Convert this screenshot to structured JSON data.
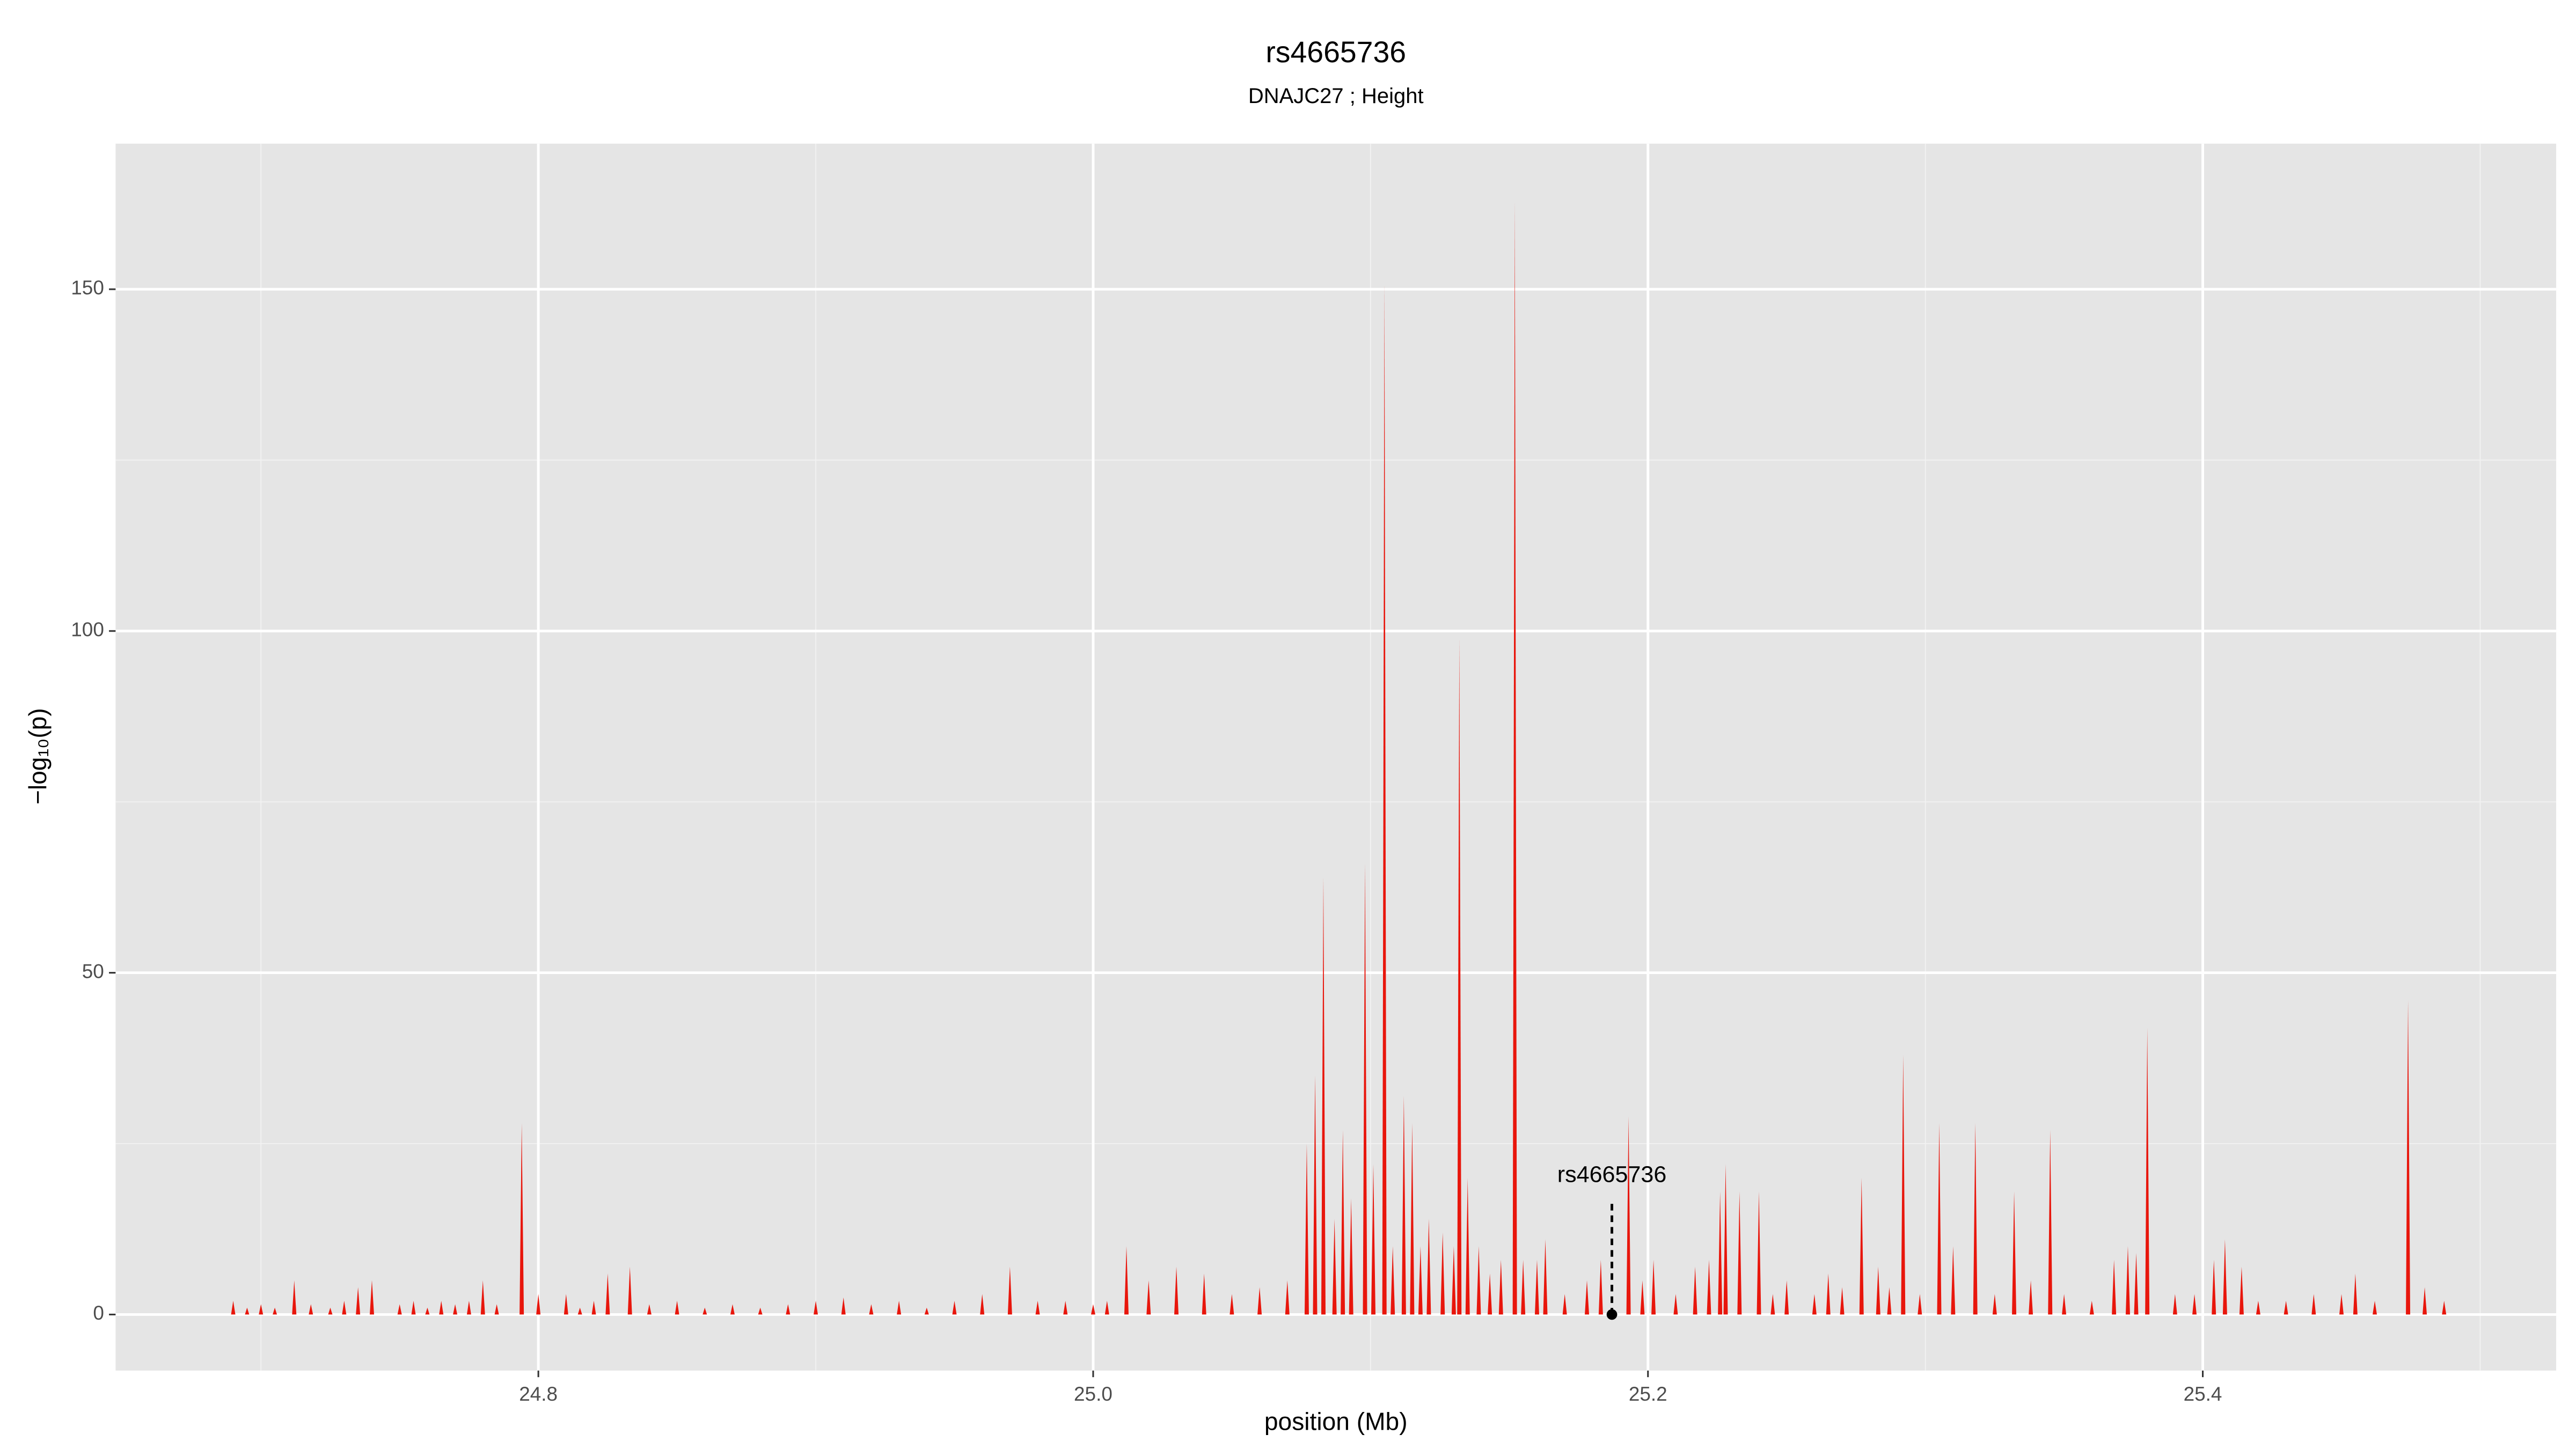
{
  "chart_data": {
    "type": "spike",
    "title": "rs4665736",
    "subtitle": "DNAJC27 ; Height",
    "x_label": "position (Mb)",
    "y_label": "−log₁₀(p)",
    "color": "#e8160c",
    "xlim": [
      24.6476,
      25.5274
    ],
    "ylim": [
      -8.2,
      171.3
    ],
    "xticks": [
      24.8,
      {
        "value": 25.0,
        "label": "25.0"
      },
      25.2,
      25.4
    ],
    "yticks": [
      0,
      50,
      100,
      150
    ],
    "grid": true,
    "minor_grid": true,
    "x": [
      24.69,
      24.695,
      24.7,
      24.705,
      24.712,
      24.718,
      24.725,
      24.73,
      24.735,
      24.74,
      24.75,
      24.755,
      24.76,
      24.765,
      24.77,
      24.775,
      24.78,
      24.785,
      24.794,
      24.8,
      24.81,
      24.815,
      24.82,
      24.825,
      24.833,
      24.84,
      24.85,
      24.86,
      24.87,
      24.88,
      24.89,
      24.9,
      24.91,
      24.92,
      24.93,
      24.94,
      24.95,
      24.96,
      24.97,
      24.98,
      24.99,
      25.0,
      25.005,
      25.012,
      25.02,
      25.03,
      25.04,
      25.05,
      25.06,
      25.07,
      25.077,
      25.08,
      25.083,
      25.087,
      25.09,
      25.093,
      25.098,
      25.101,
      25.105,
      25.108,
      25.112,
      25.115,
      25.118,
      25.121,
      25.126,
      25.13,
      25.132,
      25.135,
      25.139,
      25.143,
      25.147,
      25.152,
      25.155,
      25.16,
      25.163,
      25.17,
      25.178,
      25.183,
      25.193,
      25.198,
      25.202,
      25.21,
      25.217,
      25.222,
      25.226,
      25.228,
      25.233,
      25.24,
      25.245,
      25.25,
      25.26,
      25.265,
      25.27,
      25.277,
      25.283,
      25.287,
      25.292,
      25.298,
      25.305,
      25.31,
      25.318,
      25.325,
      25.332,
      25.338,
      25.345,
      25.35,
      25.36,
      25.368,
      25.373,
      25.376,
      25.38,
      25.39,
      25.397,
      25.404,
      25.408,
      25.414,
      25.42,
      25.43,
      25.44,
      25.45,
      25.455,
      25.462,
      25.474,
      25.48,
      25.487
    ],
    "values": [
      2,
      1,
      1.5,
      1,
      5,
      1.5,
      1,
      2,
      4,
      5,
      1.5,
      2,
      1,
      2,
      1.5,
      2,
      5,
      1.5,
      28,
      3,
      3,
      1,
      2,
      6,
      7,
      1.5,
      2,
      1,
      1.5,
      1,
      1.5,
      2,
      2.5,
      1.5,
      2,
      1,
      2,
      3,
      7,
      2,
      2,
      1.5,
      2,
      10,
      5,
      7,
      6,
      3,
      4,
      5,
      25,
      35,
      64,
      14,
      27,
      17,
      66,
      22,
      151,
      10,
      32,
      28,
      10,
      14,
      12,
      10,
      99,
      20,
      10,
      6,
      8,
      163,
      8,
      8,
      11,
      3,
      5,
      8,
      29,
      5,
      8,
      3,
      7,
      8,
      18,
      22,
      18,
      18,
      3,
      5,
      3,
      6,
      4,
      20,
      7,
      4,
      38,
      3,
      28,
      10,
      28,
      3,
      18,
      5,
      27,
      3,
      2,
      8,
      10,
      9,
      42,
      3,
      3,
      8,
      11,
      7,
      2,
      2,
      3,
      3,
      6,
      2,
      46,
      4,
      2
    ],
    "annotation": {
      "label": "rs4665736",
      "x": 25.187,
      "y": 0
    }
  }
}
